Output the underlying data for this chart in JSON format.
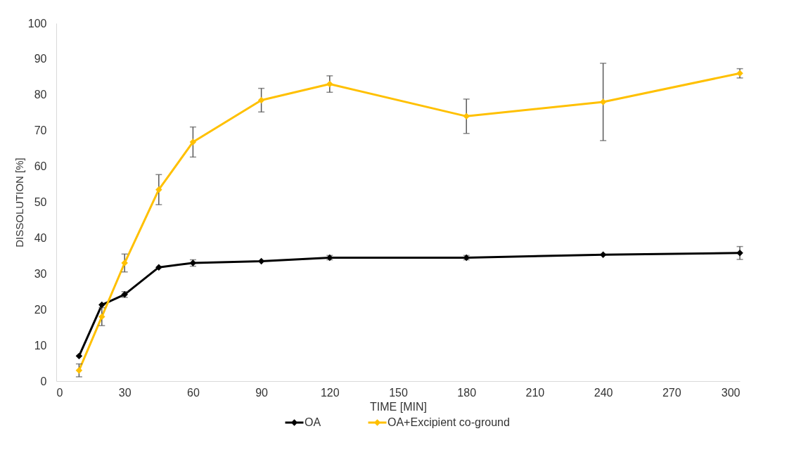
{
  "chart_data": {
    "type": "line",
    "xlabel": "TIME [MIN]",
    "ylabel": "DISSOLUTION [%]",
    "x": [
      10,
      20,
      30,
      45,
      60,
      90,
      120,
      180,
      240,
      300
    ],
    "series": [
      {
        "name": "OA",
        "color": "#000000",
        "values": [
          7,
          21.3,
          24.2,
          31.8,
          33,
          33.5,
          34.5,
          34.5,
          35.3,
          35.8
        ],
        "errors": [
          null,
          null,
          0.8,
          null,
          0.9,
          null,
          0.6,
          0.6,
          null,
          1.8
        ]
      },
      {
        "name": "OA+Excipient co-ground",
        "color": "#ffc000",
        "values": [
          3,
          18,
          33,
          53.5,
          66.8,
          78.5,
          83,
          74,
          78,
          86
        ],
        "errors": [
          1.8,
          2.5,
          2.5,
          4.2,
          4.2,
          3.3,
          2.3,
          4.8,
          10.8,
          1.3
        ]
      }
    ],
    "xlim": [
      0,
      300
    ],
    "xticks": [
      0,
      30,
      60,
      90,
      120,
      150,
      180,
      210,
      240,
      270,
      300
    ],
    "ylim": [
      0,
      100
    ],
    "yticks": [
      0,
      10,
      20,
      30,
      40,
      50,
      60,
      70,
      80,
      90,
      100
    ],
    "grid": false,
    "legend": "bottom",
    "marker": "diamond",
    "line_style": "solid"
  }
}
